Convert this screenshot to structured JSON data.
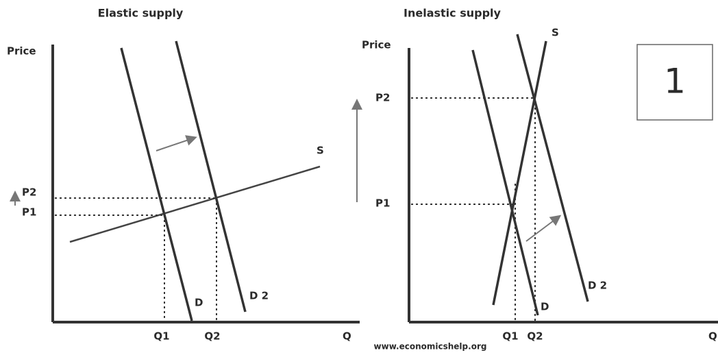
{
  "panels": [
    {
      "title": "Elastic supply",
      "y_label": "Price",
      "x_label": "Q",
      "p2": "P2",
      "p1": "P1",
      "q1": "Q1",
      "q2": "Q2",
      "supply": "S",
      "demand": "D",
      "demand2": "D 2"
    },
    {
      "title": "Inelastic supply",
      "y_label": "Price",
      "x_label": "Q",
      "p2": "P2",
      "p1": "P1",
      "q1": "Q1",
      "q2": "Q2",
      "supply": "S",
      "demand": "D",
      "demand2": "D 2"
    }
  ],
  "badge": "1",
  "footer": "www.economicshelp.org"
}
